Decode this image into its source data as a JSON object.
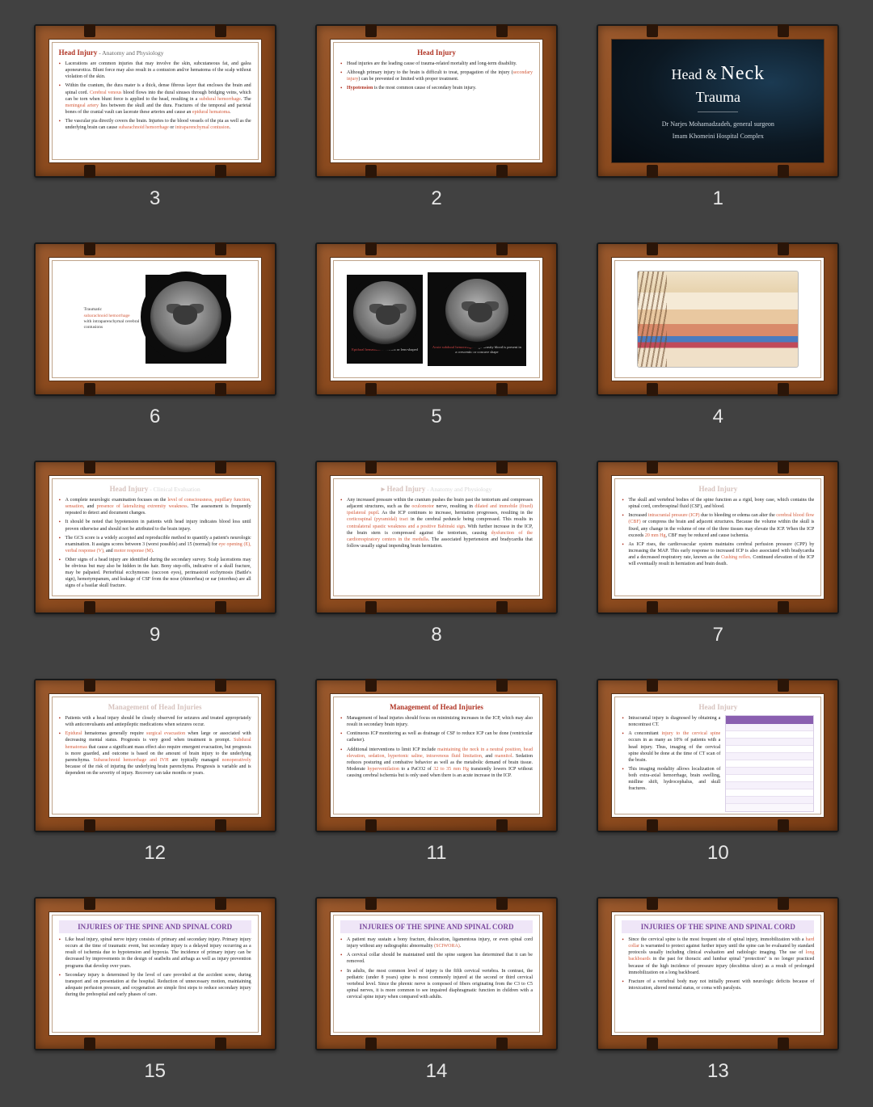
{
  "background": "#414141",
  "frame_color": "#8b4a1e",
  "accent_red": "#b03424",
  "accent_orange": "#d35a3a",
  "slides": [
    {
      "num": "3",
      "title": "Head Injury",
      "subtitle": " - Anatomy and Physiology",
      "bullets": [
        "Lacerations are common injuries that may involve the skin, subcutaneous fat, and galea aponeurotica. Blunt force may also result in a contusion and/or hematoma of the scalp without violation of the skin.",
        "Within the cranium, the dura mater is a thick, dense fibrous layer that encloses the brain and spinal cord. <span class='hl'>Cerebral venous</span> blood flows into the dural sinuses through bridging veins, which can be torn when blunt force is applied to the head, resulting in a <span class='hl'>subdural hemorrhage</span>. The <span class='hl'>meningeal artery</span> lies between the skull and the dura. Fractures of the temporal and parietal bones of the cranial vault can lacerate these arteries and cause an <span class='hl'>epidural hematoma</span>.",
        "The vascular pia directly covers the brain. Injuries to the blood vessels of the pia as well as the underlying brain can cause <span class='hl'>subarachnoid hemorrhage</span> or <span class='hl'>intraparenchymal contusion</span>."
      ]
    },
    {
      "num": "2",
      "title": "Head Injury",
      "bullets": [
        "Head injuries are the leading cause of trauma-related mortality and long-term disability.",
        "Although primary injury to the brain is difficult to treat, propagation of the injury (<span class='hl'>secondary injury</span>) can be prevented or limited with proper treatment.",
        "<span class='hlb'>Hypotension</span> is the most common cause of secondary brain injury."
      ]
    },
    {
      "num": "1",
      "dark": true,
      "line1": "Head & ",
      "line1b": "Neck",
      "line2": "Trauma",
      "author1": "Dr Narjes Mohamadzadeh, general surgeon",
      "author2": "Imam Khomeini Hospital Complex"
    },
    {
      "num": "6",
      "image": "single-scan",
      "side_label": "Traumatic <span class='hl'>subarachnoid hemorrhage</span> with intraparenchymal cerebral contusions"
    },
    {
      "num": "5",
      "image": "double-scan",
      "cap_left": "Epidural hematoma. <span class='w'>A convex or lens-shaped</span>",
      "cap_right": "Acute subdural hemorrhage. <span class='w'>High-density blood is present in a crescentic or concave shape</span>"
    },
    {
      "num": "4",
      "image": "anatomy"
    },
    {
      "num": "9",
      "faded": true,
      "title": "Head Injury",
      "subtitle": " - Clinical Evaluation",
      "bullets": [
        "A complete neurologic examination focuses on the <span class='hl'>level of consciousness, pupillary function, sensation,</span> and <span class='hl'>presence of lateralizing extremity weakness</span>. The assessment is frequently repeated to detect and document changes.",
        "It should be noted that hypotension in patients with head injury indicates blood loss until proven otherwise and should not be attributed to the brain injury.",
        "The GCS score is a widely accepted and reproducible method to quantify a patient's neurologic examination. It assigns scores between 3 (worst possible) and 15 (normal) for <span class='hl'>eye opening (E), verbal response (V),</span> and <span class='hl'>motor response (M)</span>.",
        "Other signs of a head injury are identified during the secondary survey. Scalp lacerations may be obvious but may also be hidden in the hair. Bony step-offs, indicative of a skull fracture, may be palpated. Periorbital ecchymoses (raccoon eyes), perimastoid ecchymosis (Battle's sign), hemotympanum, and leakage of CSF from the nose (rhinorrhea) or ear (otorrhea) are all signs of a basilar skull fracture."
      ]
    },
    {
      "num": "8",
      "faded": true,
      "arrow": true,
      "title": "Head Injury",
      "subtitle": " - Anatomy and Physiology",
      "bullets": [
        "Any increased pressure within the cranium pushes the brain past the tentorium and compresses adjacent structures, such as the <span class='hl'>oculomotor</span> nerve, resulting in <span class='hl'>dilated and immobile (fixed) ipsilateral pupil</span>. As the ICP continues to increase, herniation progresses, resulting in the <span class='hl'>corticospinal (pyramidal) tract</span> in the cerebral peduncle being compressed. This results in <span class='hl'>contralateral spastic weakness and a positive Babinski sign</span>. With further increase in the ICP, the brain stem is compressed against the tentorium, causing <span class='hl'>dysfunction of the cardiorespiratory centers in the medulla</span>. The associated hypertension and bradycardia that follow usually signal impending brain herniation."
      ]
    },
    {
      "num": "7",
      "faded": true,
      "title": "Head Injury",
      "bullets": [
        "The skull and vertebral bodies of the spine function as a rigid, bony case, which contains the spinal cord, cerebrospinal fluid (CSF), and blood.",
        "Increased <span class='hl'>intracranial pressure (ICP)</span> due to bleeding or edema can alter the <span class='hl'>cerebral blood flow (CBF)</span> or compress the brain and adjacent structures. Because the volume within the skull is fixed, any change in the volume of one of the three tissues may elevate the ICP. When the ICP exceeds <span class='hl'>20 mm Hg</span>, CBF may be reduced and cause ischemia.",
        "As ICP rises, the cardiovascular system maintains cerebral perfusion pressure (CPP) by increasing the MAP. This early response to increased ICP is also associated with bradycardia and a decreased respiratory rate, known as the <span class='hl'>Cushing reflex</span>. Continued elevation of the ICP will eventually result in herniation and brain death."
      ]
    },
    {
      "num": "12",
      "faded": true,
      "title": "Management of Head Injuries",
      "bullets": [
        "Patients with a head injury should be closely observed for seizures and treated appropriately with anticonvulsants and antiepileptic medications when seizures occur.",
        "<span class='hl'>Epidural</span> hematomas generally require <span class='hl'>surgical evacuation</span> when large or associated with decreasing mental status. Prognosis is very good when treatment is prompt. <span class='hl'>Subdural hematomas</span> that cause a significant mass effect also require emergent evacuation, but prognosis is more guarded, and outcome is based on the amount of brain injury to the underlying parenchyma. <span class='hl'>Subarachnoid hemorrhage and IVH</span> are typically managed <span class='hl'>nonoperatively</span> because of the risk of injuring the underlying brain parenchyma. Prognosis is variable and is dependent on the severity of injury. Recovery can take months or years."
      ]
    },
    {
      "num": "11",
      "title": "Management of Head Injuries",
      "bullets": [
        "Management of head injuries should focus on minimizing increases in the ICP, which may also result in secondary brain injury.",
        "Continuous ICP monitoring as well as drainage of CSF to reduce ICP can be done (ventricular catheter).",
        "Additional interventions to limit ICP include <span class='hl'>maintaining the neck in a neutral position, head elevation, sedation, hypertonic saline, intravenous fluid limitation,</span> and <span class='hl'>mannitol</span>. Sedation reduces posturing and combative behavior as well as the metabolic demand of brain tissue. Moderate <span class='hl'>hyperventilation</span> to a PaCO2 of <span class='hl'>32 to 35 mm Hg</span> transiently lowers ICP without causing cerebral ischemia but is only used when there is an acute increase in the ICP."
      ]
    },
    {
      "num": "10",
      "faded": true,
      "title": "Head Injury",
      "has_table": true,
      "bullets": [
        "Intracranial injury is diagnosed by obtaining a noncontrast CT.",
        "A concomitant <span class='hl'>injury to the cervical spine</span> occurs in as many as 10% of patients with a head injury. Thus, imaging of the cervical spine should be done at the time of CT scan of the brain.",
        "This imaging modality allows localization of both extra-axial hemorrhage, brain swelling, midline shift, hydrocephalus, and skull fractures."
      ]
    },
    {
      "num": "15",
      "title": "INJURIES OF THE SPINE AND SPINAL CORD",
      "purple": true,
      "bullets": [
        "Like head injury, spinal nerve injury consists of primary and secondary injury. Primary injury occurs at the time of traumatic event, but secondary injury is a delayed injury occurring as a result of ischemia due to hypotension and hypoxia. The incidence of primary injury can be decreased by improvements in the design of seatbelts and airbags as well as injury prevention programs that develop over years.",
        "Secondary injury is determined by the level of care provided at the accident scene, during transport and on presentation at the hospital. Reduction of unnecessary motion, maintaining adequate perfusion pressure, and oxygenation are simple first steps to reduce secondary injury during the prehospital and early phases of care."
      ]
    },
    {
      "num": "14",
      "title": "INJURIES OF THE SPINE AND SPINAL CORD",
      "purple": true,
      "bullets": [
        "A patient may sustain a bony fracture, dislocation, ligamentous injury, or even spinal cord injury without any radiographic abnormality <span class='hl'>(SCIWORA)</span>.",
        "A cervical collar should be maintained until the spine surgeon has determined that it can be removed.",
        "In adults, the most common level of injury is the fifth cervical vertebra. In contrast, the pediatric (under 8 years) spine is most commonly injured at the second or third cervical vertebral level. Since the phrenic nerve is composed of fibers originating from the C3 to C5 spinal nerves, it is more common to see impaired diaphragmatic function in children with a cervical spine injury when compared with adults."
      ]
    },
    {
      "num": "13",
      "title": "INJURIES OF THE SPINE AND SPINAL CORD",
      "purple": true,
      "bullets": [
        "Since the cervical spine is the most frequent site of spinal injury, immobilization with a <span class='hl'>hard collar</span> is warranted to protect against further injury until the spine can be evaluated by standard protocols usually including clinical evaluation and radiologic imaging. The use of <span class='hl'>long backboards</span> in the past for thoracic and lumbar spinal \"protection\" is no longer practiced because of the high incidence of pressure injury (decubitus ulcer) as a result of prolonged immobilization on a long backboard.",
        "Fracture of a vertebral body may not initially present with neurologic deficits because of intoxication, altered mental status, or coma with paralysis."
      ]
    }
  ]
}
